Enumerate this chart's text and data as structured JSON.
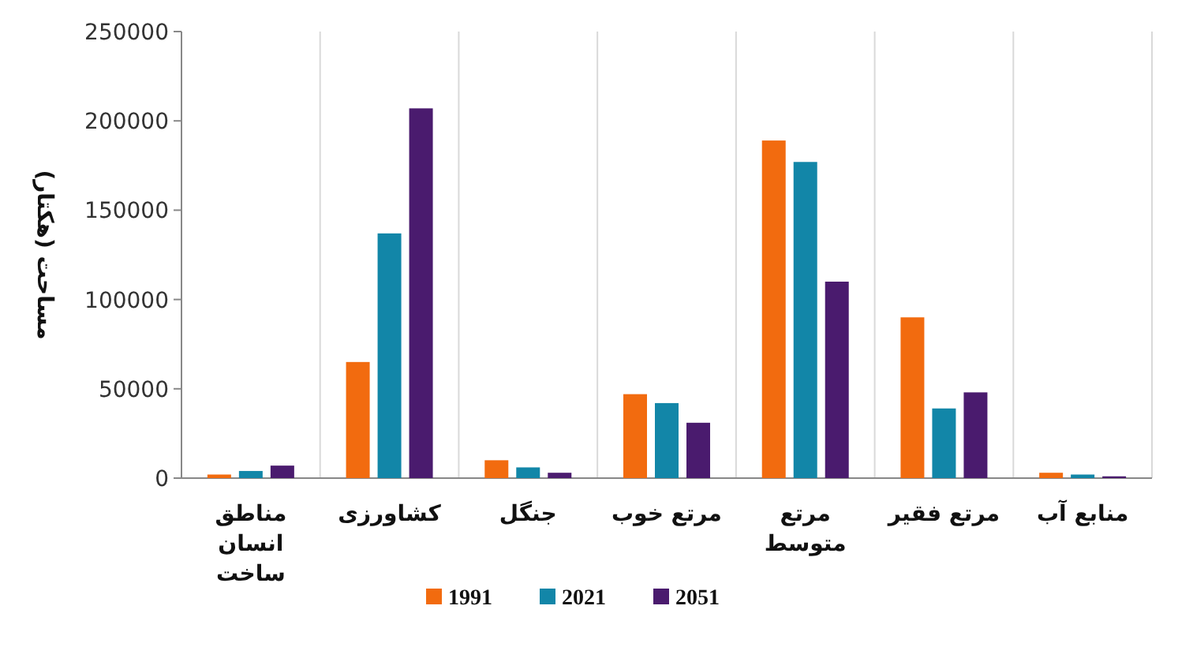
{
  "chart_data": {
    "type": "bar",
    "ylabel": "مساحت (هکتار)",
    "categories": [
      "مناطق انسان ساخت",
      "کشاورزی",
      "جنگل",
      "مرتع خوب",
      "مرتع متوسط",
      "مرتع فقیر",
      "منابع آب"
    ],
    "series": [
      {
        "name": "1991",
        "color": "#f26b0f",
        "values": [
          2000,
          65000,
          10000,
          47000,
          189000,
          90000,
          3000
        ]
      },
      {
        "name": "2021",
        "color": "#1286a8",
        "values": [
          4000,
          137000,
          6000,
          42000,
          177000,
          39000,
          2000
        ]
      },
      {
        "name": "2051",
        "color": "#4a1b6e",
        "values": [
          7000,
          207000,
          3000,
          31000,
          110000,
          48000,
          1000
        ]
      }
    ],
    "ylim": [
      0,
      250000
    ],
    "yticks": [
      0,
      50000,
      100000,
      150000,
      200000,
      250000
    ],
    "grid": "x",
    "legend": "bottom"
  }
}
